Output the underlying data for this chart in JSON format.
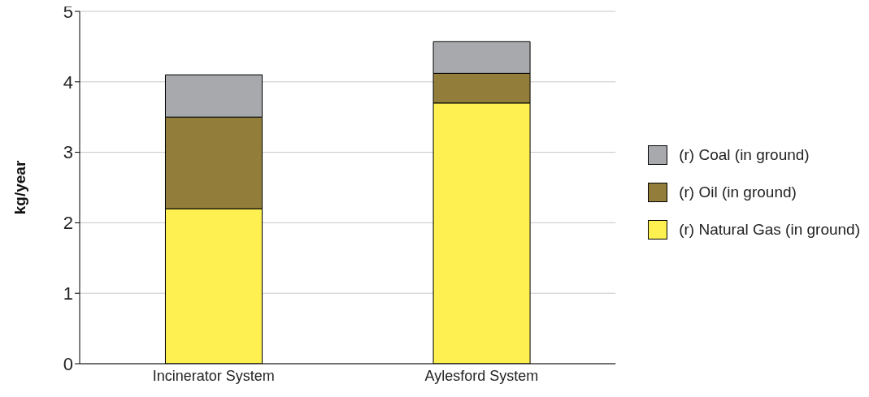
{
  "chart_data": {
    "type": "bar",
    "stacked": true,
    "ylabel": "kg/year",
    "categories": [
      "Incinerator System",
      "Aylesford System"
    ],
    "series": [
      {
        "name": "(r) Natural Gas (in ground)",
        "color": "#fdf050",
        "values": [
          2.2,
          3.7
        ]
      },
      {
        "name": "(r) Oil (in ground)",
        "color": "#927e3a",
        "values": [
          1.3,
          0.42
        ]
      },
      {
        "name": "(r) Coal (in ground)",
        "color": "#a7a9ac",
        "values": [
          0.6,
          0.45
        ]
      }
    ],
    "ylim": [
      0,
      5
    ],
    "yticks": [
      0,
      1,
      2,
      3,
      4,
      5
    ],
    "grid": "y",
    "legend": "right"
  }
}
